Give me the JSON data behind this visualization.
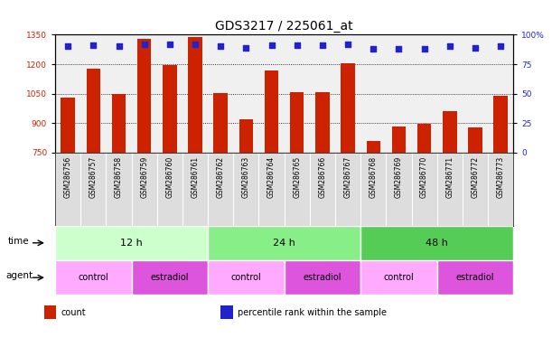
{
  "title": "GDS3217 / 225061_at",
  "samples": [
    "GSM286756",
    "GSM286757",
    "GSM286758",
    "GSM286759",
    "GSM286760",
    "GSM286761",
    "GSM286762",
    "GSM286763",
    "GSM286764",
    "GSM286765",
    "GSM286766",
    "GSM286767",
    "GSM286768",
    "GSM286769",
    "GSM286770",
    "GSM286771",
    "GSM286772",
    "GSM286773"
  ],
  "counts": [
    1030,
    1175,
    1050,
    1330,
    1195,
    1340,
    1055,
    920,
    1170,
    1060,
    1060,
    1205,
    810,
    885,
    895,
    960,
    880,
    1040
  ],
  "percentiles": [
    90,
    91,
    90,
    92,
    92,
    92,
    90,
    89,
    91,
    91,
    91,
    92,
    88,
    88,
    88,
    90,
    89,
    90
  ],
  "ymin": 750,
  "ymax": 1350,
  "yticks": [
    750,
    900,
    1050,
    1200,
    1350
  ],
  "y2min": 0,
  "y2max": 100,
  "y2ticks": [
    0,
    25,
    50,
    75,
    100
  ],
  "bar_color": "#cc2200",
  "dot_color": "#2222cc",
  "bar_bottom": 750,
  "time_groups": [
    {
      "label": "12 h",
      "start": 0,
      "end": 6,
      "color": "#ccffcc"
    },
    {
      "label": "24 h",
      "start": 6,
      "end": 12,
      "color": "#88ee88"
    },
    {
      "label": "48 h",
      "start": 12,
      "end": 18,
      "color": "#55cc55"
    }
  ],
  "agent_groups": [
    {
      "label": "control",
      "start": 0,
      "end": 3,
      "color": "#ffaaff"
    },
    {
      "label": "estradiol",
      "start": 3,
      "end": 6,
      "color": "#dd55dd"
    },
    {
      "label": "control",
      "start": 6,
      "end": 9,
      "color": "#ffaaff"
    },
    {
      "label": "estradiol",
      "start": 9,
      "end": 12,
      "color": "#dd55dd"
    },
    {
      "label": "control",
      "start": 12,
      "end": 15,
      "color": "#ffaaff"
    },
    {
      "label": "estradiol",
      "start": 15,
      "end": 18,
      "color": "#dd55dd"
    }
  ],
  "bg_color": "#ffffff",
  "axis_color_left": "#cc2200",
  "axis_color_right": "#2222cc",
  "title_fontsize": 10,
  "tick_fontsize": 6.5,
  "sample_fontsize": 5.5,
  "legend_items": [
    {
      "color": "#cc2200",
      "label": "count"
    },
    {
      "color": "#2222cc",
      "label": "percentile rank within the sample"
    }
  ]
}
